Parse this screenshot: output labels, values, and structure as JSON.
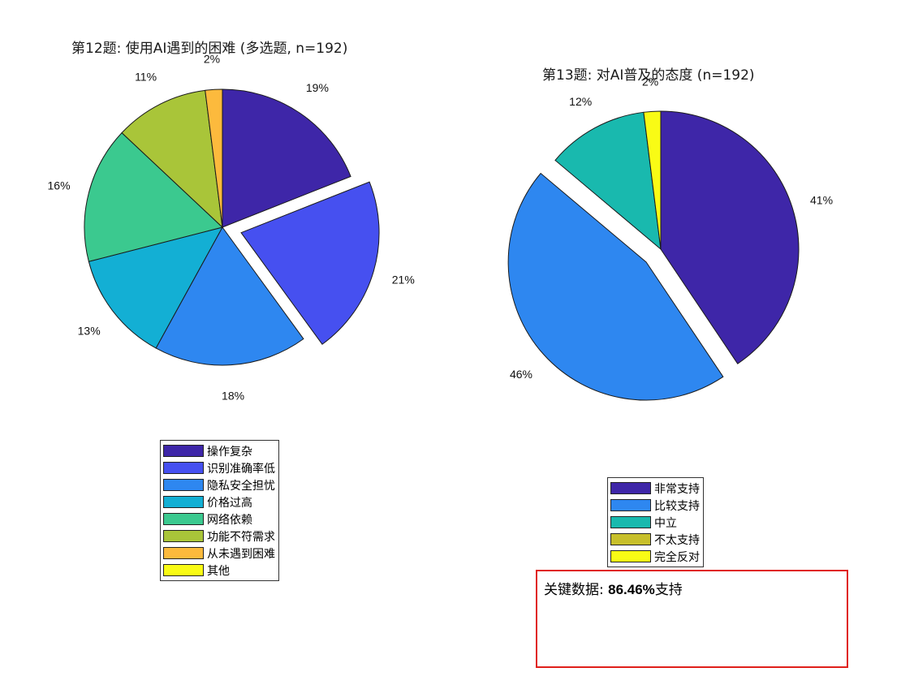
{
  "chart_data": [
    {
      "type": "pie",
      "title": "第12题: 使用AI遇到的困难 (多选题, n=192)",
      "categories": [
        "操作复杂",
        "识别准确率低",
        "隐私安全担忧",
        "价格过高",
        "网络依赖",
        "功能不符需求",
        "从未遇到困难",
        "其他"
      ],
      "values": [
        19,
        21,
        18,
        13,
        16,
        11,
        2,
        0
      ],
      "labels": [
        "19%",
        "21%",
        "18%",
        "13%",
        "16%",
        "11%",
        "2%",
        ""
      ],
      "colors": [
        "#3e26a8",
        "#4650f0",
        "#2e87f0",
        "#13afd4",
        "#3bc98f",
        "#a9c539",
        "#fcba3d",
        "#f9fb15"
      ],
      "exploded": [
        "识别准确率低"
      ],
      "legend_position": "bottom"
    },
    {
      "type": "pie",
      "title": "第13题: 对AI普及的态度 (n=192)",
      "categories": [
        "非常支持",
        "比较支持",
        "中立",
        "不太支持",
        "完全反对"
      ],
      "values": [
        41,
        46,
        12,
        0,
        2
      ],
      "labels": [
        "41%",
        "46%",
        "12%",
        "",
        "2%"
      ],
      "colors": [
        "#3e26a8",
        "#2e87f0",
        "#19b9ae",
        "#c7bf2a",
        "#f9fb15"
      ],
      "exploded": [
        "比较支持"
      ],
      "legend_position": "bottom"
    }
  ],
  "annotation": {
    "prefix": "关键数据: ",
    "value": "86.46%",
    "suffix": "支持"
  }
}
